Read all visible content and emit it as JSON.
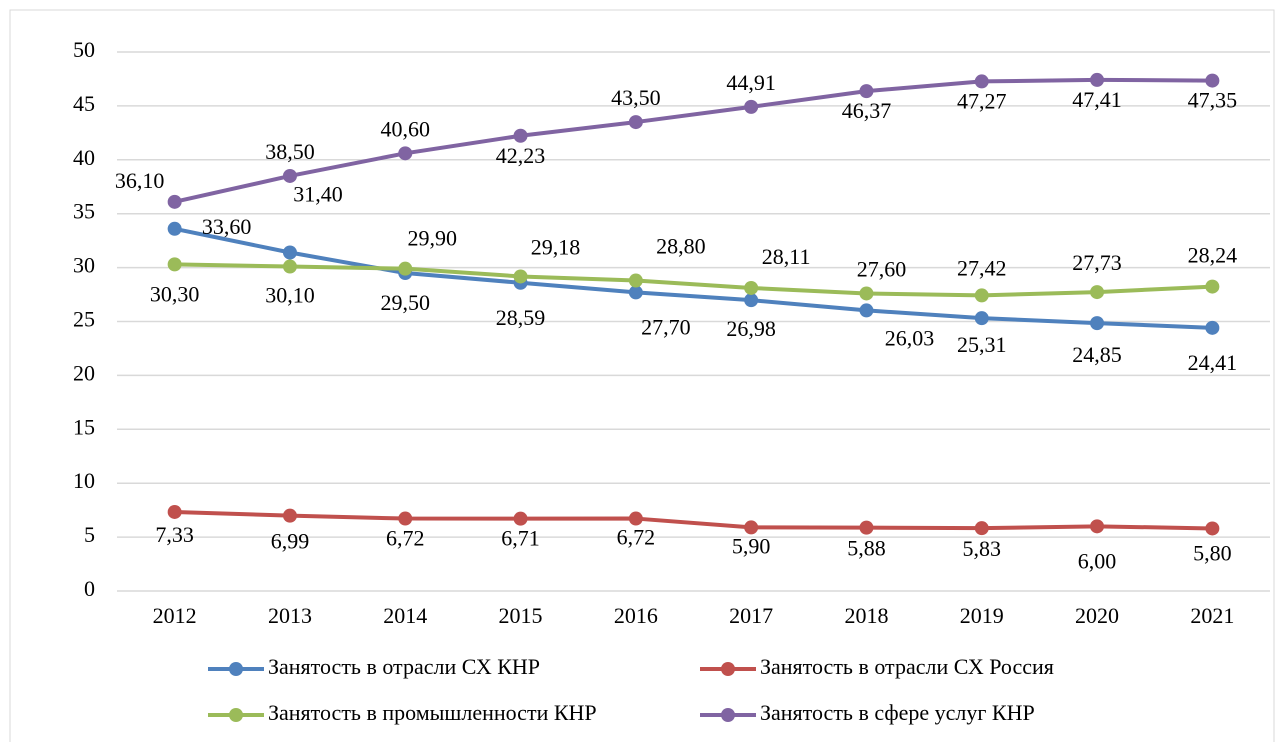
{
  "chart_data": {
    "type": "line",
    "categories": [
      "2012",
      "2013",
      "2014",
      "2015",
      "2016",
      "2017",
      "2018",
      "2019",
      "2020",
      "2021"
    ],
    "series": [
      {
        "name": "Занятость в отрасли СХ КНР",
        "color": "#4f81bd",
        "values": [
          33.6,
          31.4,
          29.5,
          28.59,
          27.7,
          26.98,
          26.03,
          25.31,
          24.85,
          24.41
        ],
        "value_labels": [
          "33,60",
          "31,40",
          "29,50",
          "28,59",
          "27,70",
          "26,98",
          "26,03",
          "25,31",
          "24,85",
          "24,41"
        ]
      },
      {
        "name": "Занятость в отрасли СХ Россия",
        "color": "#c0504d",
        "values": [
          7.33,
          6.99,
          6.72,
          6.71,
          6.72,
          5.9,
          5.88,
          5.83,
          6.0,
          5.8
        ],
        "value_labels": [
          "7,33",
          "6,99",
          "6,72",
          "6,71",
          "6,72",
          "5,90",
          "5,88",
          "5,83",
          "6,00",
          "5,80"
        ]
      },
      {
        "name": "Занятость в промышленности КНР",
        "color": "#9bbb59",
        "values": [
          30.3,
          30.1,
          29.9,
          29.18,
          28.8,
          28.11,
          27.6,
          27.42,
          27.73,
          28.24
        ],
        "value_labels": [
          "30,30",
          "30,10",
          "29,90",
          "29,18",
          "28,80",
          "28,11",
          "27,60",
          "27,42",
          "27,73",
          "28,24"
        ]
      },
      {
        "name": "Занятость в сфере услуг КНР",
        "color": "#8064a2",
        "values": [
          36.1,
          38.5,
          40.6,
          42.23,
          43.5,
          44.91,
          46.37,
          47.27,
          47.41,
          47.35
        ],
        "value_labels": [
          "36,10",
          "38,50",
          "40,60",
          "42,23",
          "43,50",
          "44,91",
          "46,37",
          "47,27",
          "47,41",
          "47,35"
        ]
      }
    ],
    "ylim": [
      0,
      50
    ],
    "yticks": [
      0,
      5,
      10,
      15,
      20,
      25,
      30,
      35,
      40,
      45,
      50
    ],
    "grid": true,
    "legend": "bottom"
  }
}
